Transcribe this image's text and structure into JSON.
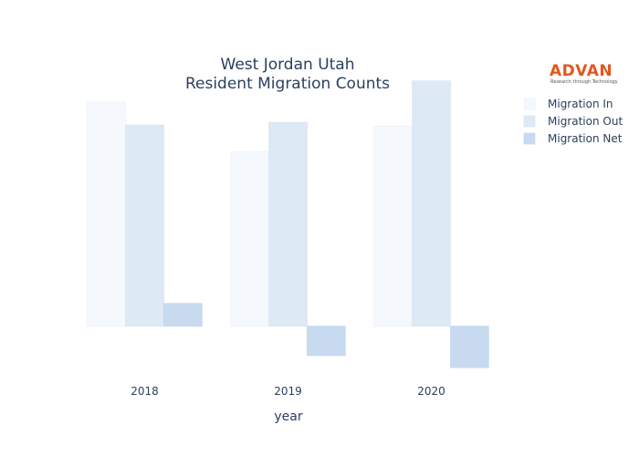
{
  "logo": {
    "brand": "ADVAN",
    "tagline": "Research through Technology",
    "color": "#e2571e"
  },
  "chart_data": {
    "type": "bar",
    "title_lines": [
      "West Jordan Utah",
      "Resident Migration Counts"
    ],
    "xlabel": "year",
    "ylabel": "",
    "categories": [
      "2018",
      "2019",
      "2020"
    ],
    "ylim": [
      -1300,
      6400
    ],
    "grid": false,
    "y_ticks_visible": false,
    "legend_position": "top-right",
    "series": [
      {
        "name": "Migration In",
        "values": [
          6100,
          4750,
          5450
        ],
        "color": "#f5f9fd",
        "stroke": "#e6eef8"
      },
      {
        "name": "Migration Out",
        "values": [
          5480,
          5550,
          6680
        ],
        "color": "#dee9f6",
        "stroke": "#d2e1f2"
      },
      {
        "name": "Migration Net",
        "values": [
          620,
          -800,
          -1130
        ],
        "color": "#c7daf0",
        "stroke": "#bcd2ec"
      }
    ]
  }
}
